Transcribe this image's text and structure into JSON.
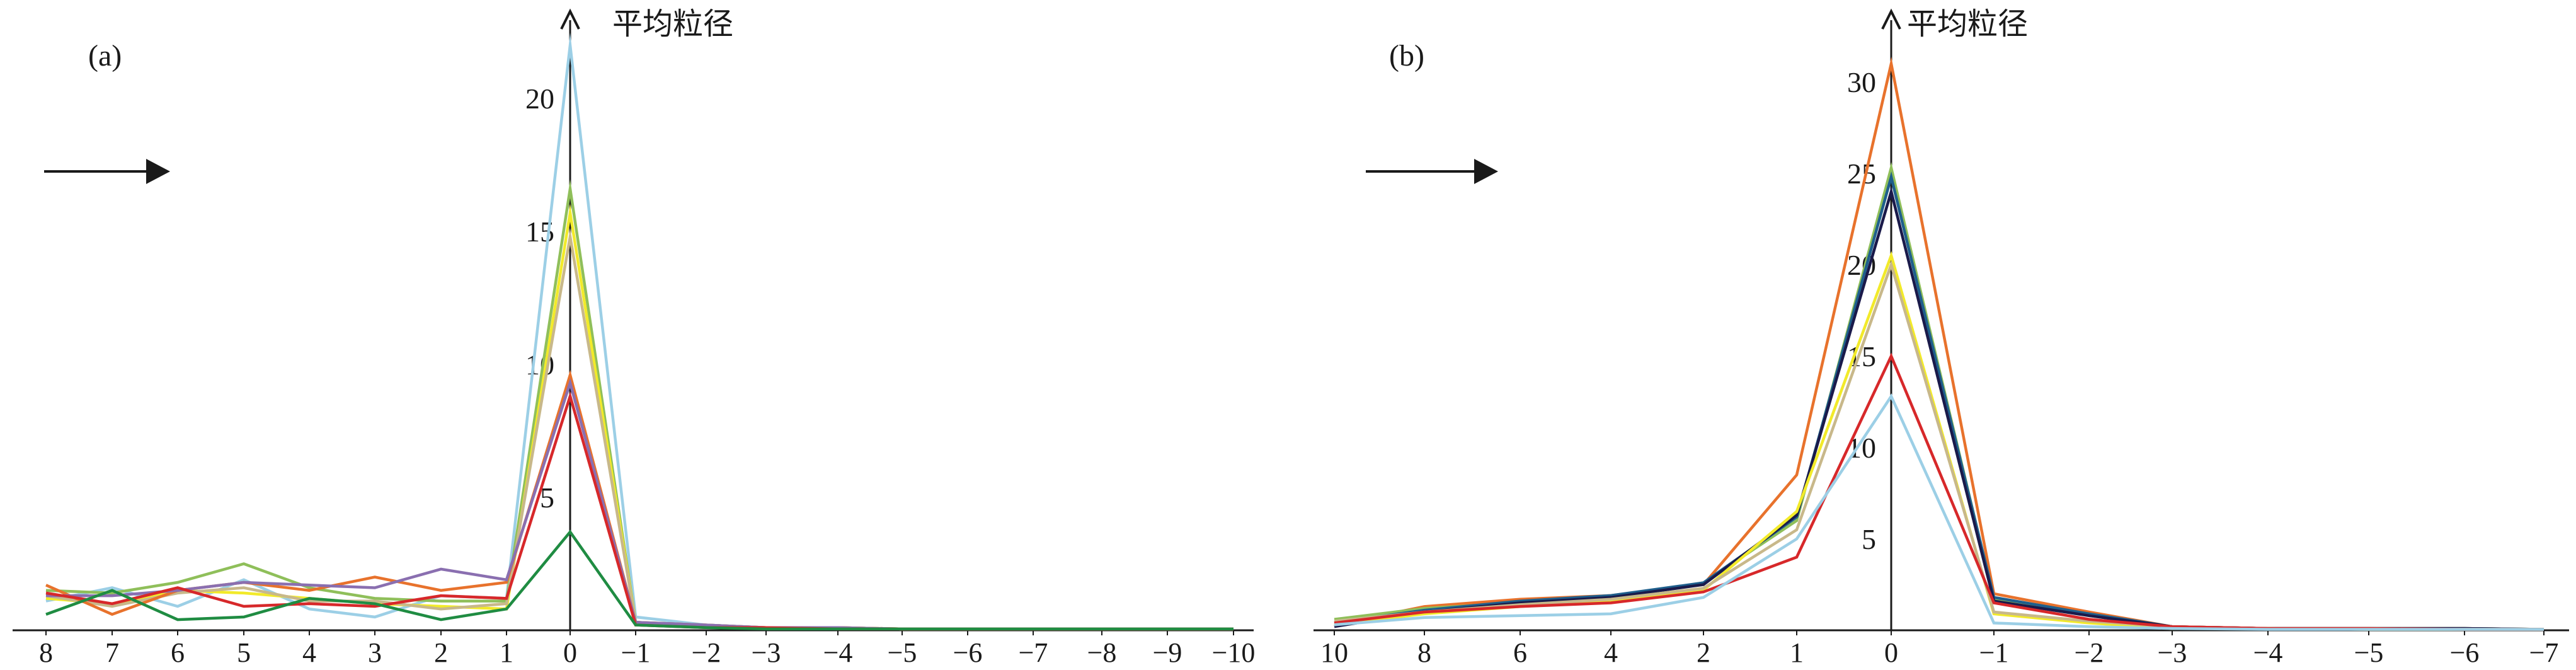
{
  "chart_data": [
    {
      "type": "line",
      "panel_label": "(a)",
      "ylabel": "平均粒径",
      "x": [
        8,
        7,
        6,
        5,
        4,
        3,
        2,
        1,
        0,
        -1,
        -2,
        -3,
        -4,
        -5,
        -6,
        -7,
        -8,
        -9,
        -10
      ],
      "x_tick_labels": [
        "8",
        "7",
        "6",
        "5",
        "4",
        "3",
        "2",
        "1",
        "0",
        "−1",
        "−2",
        "−3",
        "−4",
        "−5",
        "−6",
        "−7",
        "−8",
        "−9",
        "−10"
      ],
      "y_ticks": [
        5,
        10,
        15,
        20
      ],
      "ylim": [
        0,
        23.5
      ],
      "arrow": "→",
      "series": [
        {
          "color": "#9ccfe6",
          "values": [
            1.1,
            1.6,
            0.9,
            1.9,
            0.8,
            0.5,
            1.3,
            1.2,
            22.0,
            0.5,
            0.2,
            0.1,
            0.1,
            0.05,
            0.05,
            0.05,
            0.05,
            0.05,
            0.05
          ]
        },
        {
          "color": "#8fbf5a",
          "values": [
            1.5,
            1.4,
            1.8,
            2.5,
            1.6,
            1.2,
            1.1,
            1.1,
            16.6,
            0.3,
            0.2,
            0.1,
            0.1,
            0.05,
            0.05,
            0.05,
            0.05,
            0.05,
            0.05
          ]
        },
        {
          "color": "#f2ea2a",
          "values": [
            1.2,
            1.0,
            1.5,
            1.4,
            1.2,
            1.0,
            0.9,
            0.8,
            15.7,
            0.3,
            0.1,
            0.1,
            0.1,
            0.05,
            0.05,
            0.05,
            0.05,
            0.05,
            0.05
          ]
        },
        {
          "color": "#c8b88a",
          "values": [
            1.3,
            0.9,
            1.4,
            1.6,
            1.1,
            1.1,
            0.8,
            1.0,
            14.8,
            0.3,
            0.1,
            0.1,
            0.1,
            0.05,
            0.05,
            0.05,
            0.05,
            0.05,
            0.05
          ]
        },
        {
          "color": "#e8722c",
          "values": [
            1.7,
            0.6,
            1.5,
            1.8,
            1.5,
            2.0,
            1.5,
            1.8,
            9.6,
            0.3,
            0.2,
            0.1,
            0.1,
            0.05,
            0.05,
            0.05,
            0.05,
            0.05,
            0.05
          ]
        },
        {
          "color": "#8a6fb0",
          "values": [
            1.3,
            1.3,
            1.5,
            1.8,
            1.7,
            1.6,
            2.3,
            1.9,
            9.3,
            0.3,
            0.2,
            0.1,
            0.1,
            0.05,
            0.05,
            0.05,
            0.05,
            0.05,
            0.05
          ]
        },
        {
          "color": "#d7282a",
          "values": [
            1.4,
            1.0,
            1.6,
            0.9,
            1.0,
            0.9,
            1.3,
            1.2,
            8.8,
            0.2,
            0.1,
            0.1,
            0.05,
            0.05,
            0.05,
            0.05,
            0.05,
            0.05,
            0.05
          ]
        },
        {
          "color": "#1f8c42",
          "values": [
            0.6,
            1.5,
            0.4,
            0.5,
            1.2,
            1.0,
            0.4,
            0.8,
            3.7,
            0.2,
            0.1,
            0.05,
            0.05,
            0.05,
            0.05,
            0.05,
            0.05,
            0.05,
            0.05
          ]
        }
      ]
    },
    {
      "type": "line",
      "panel_label": "(b)",
      "ylabel": "平均粒径",
      "x": [
        10,
        8,
        6,
        4,
        2,
        1,
        0,
        -1,
        -2,
        -3,
        -4,
        -5,
        -6,
        -7
      ],
      "x_tick_labels": [
        "10",
        "8",
        "6",
        "4",
        "2",
        "1",
        "0",
        "−1",
        "−2",
        "−3",
        "−4",
        "−5",
        "−6",
        "−7"
      ],
      "y_ticks": [
        5,
        10,
        15,
        20,
        25,
        30
      ],
      "ylim": [
        0,
        33.5
      ],
      "arrow": "→",
      "series": [
        {
          "color": "#e8722c",
          "values": [
            0.3,
            1.3,
            1.7,
            1.9,
            2.5,
            8.5,
            31.0,
            2.0,
            1.0,
            0.2,
            0.1,
            0.1,
            0.1,
            0.05
          ]
        },
        {
          "color": "#8fbf5a",
          "values": [
            0.6,
            1.2,
            1.5,
            1.8,
            2.6,
            6.0,
            25.3,
            1.7,
            0.8,
            0.2,
            0.1,
            0.1,
            0.1,
            0.05
          ]
        },
        {
          "color": "#1f5f8c",
          "values": [
            0.4,
            1.1,
            1.6,
            1.9,
            2.6,
            6.2,
            24.8,
            1.8,
            0.9,
            0.2,
            0.1,
            0.1,
            0.1,
            0.05
          ]
        },
        {
          "color": "#1a1a4a",
          "values": [
            0.2,
            1.0,
            1.5,
            1.8,
            2.5,
            6.3,
            24.0,
            1.6,
            0.8,
            0.2,
            0.1,
            0.1,
            0.1,
            0.05
          ]
        },
        {
          "color": "#f2ea2a",
          "values": [
            0.3,
            0.9,
            1.3,
            1.6,
            2.2,
            6.5,
            20.5,
            0.9,
            0.4,
            0.1,
            0.1,
            0.05,
            0.05,
            0.05
          ]
        },
        {
          "color": "#c8b88a",
          "values": [
            0.5,
            1.0,
            1.4,
            1.7,
            2.3,
            5.5,
            20.0,
            1.0,
            0.5,
            0.2,
            0.1,
            0.05,
            0.05,
            0.05
          ]
        },
        {
          "color": "#d7282a",
          "values": [
            0.4,
            1.0,
            1.3,
            1.5,
            2.1,
            4.0,
            15.0,
            1.5,
            0.6,
            0.2,
            0.1,
            0.1,
            0.05,
            0.05
          ]
        },
        {
          "color": "#9ccfe6",
          "values": [
            0.3,
            0.7,
            0.8,
            0.9,
            1.8,
            5.0,
            12.8,
            0.4,
            0.2,
            0.1,
            0.05,
            0.05,
            0.05,
            0.05
          ]
        }
      ]
    }
  ]
}
